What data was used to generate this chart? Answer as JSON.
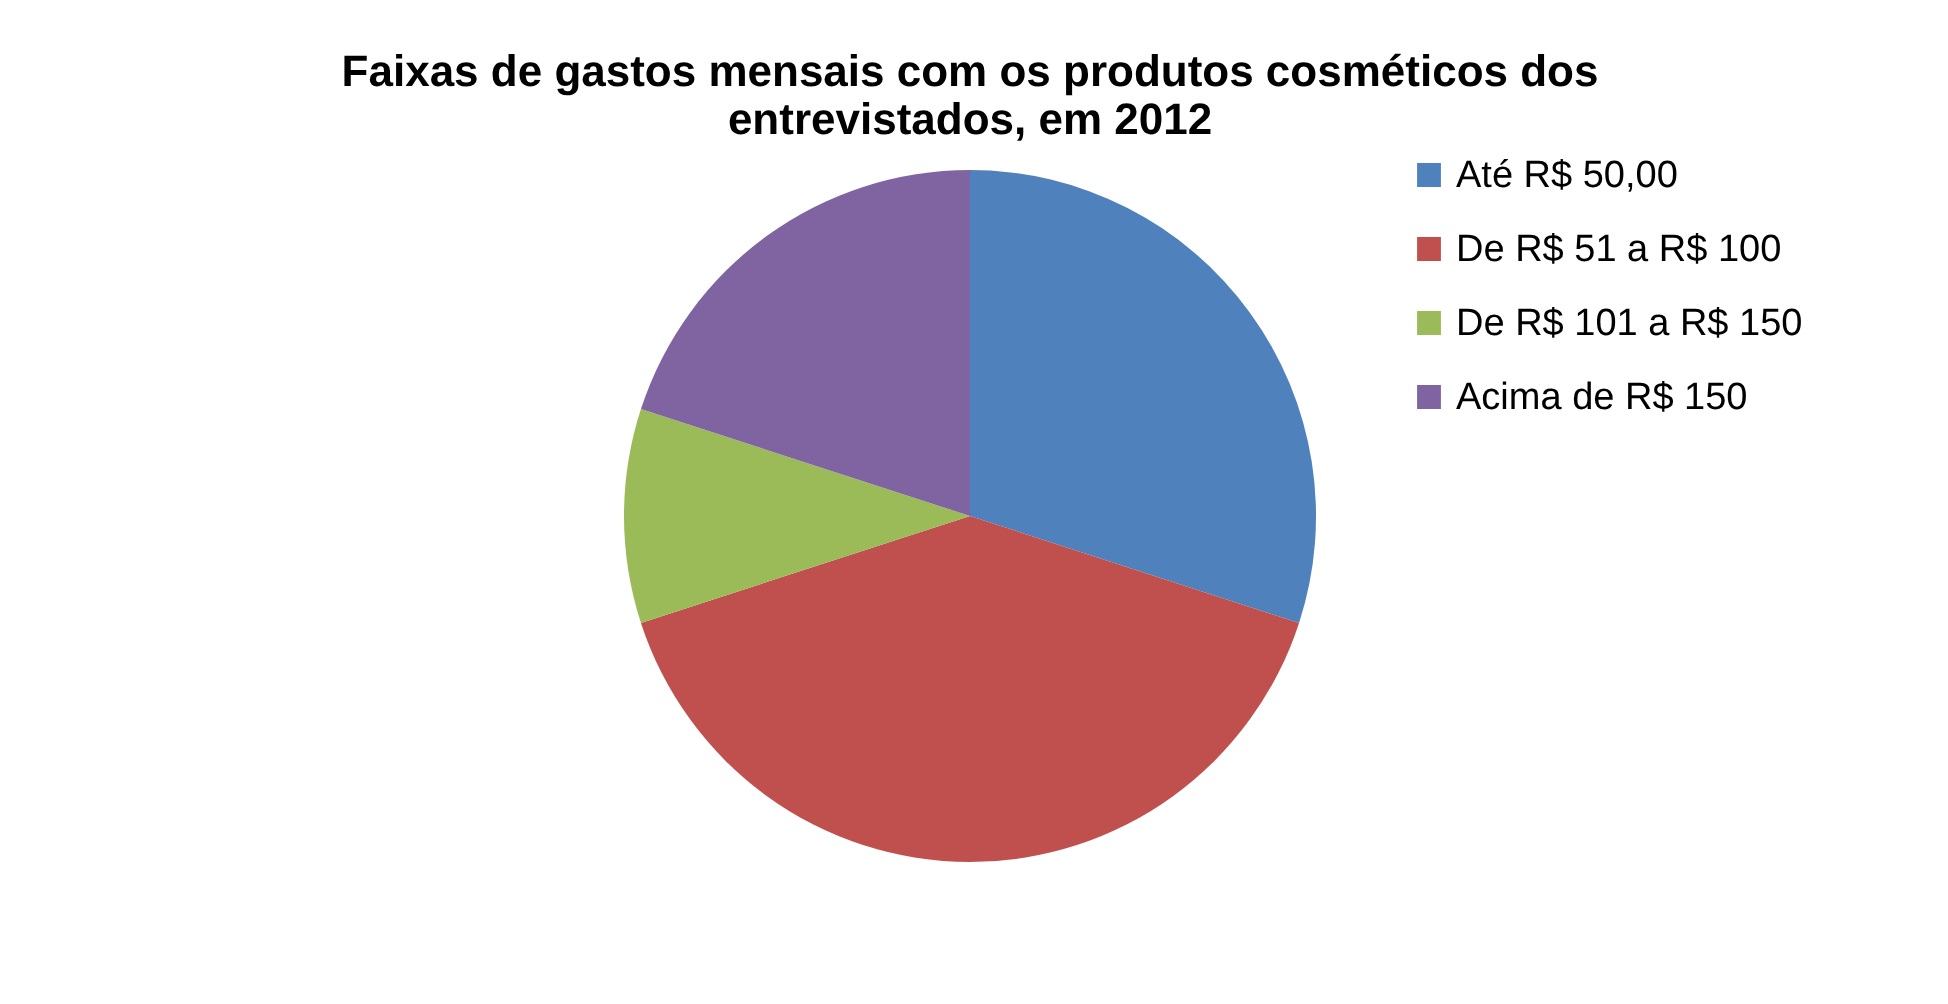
{
  "chart_data": {
    "type": "pie",
    "title": "Faixas de gastos mensais com os produtos cosméticos dos entrevistados, em 2012",
    "categories": [
      "Até R$ 50,00",
      "De R$ 51 a R$ 100",
      "De R$ 101 a R$ 150",
      "Acima de R$ 150"
    ],
    "values": [
      30,
      40,
      10,
      20
    ],
    "colors": [
      "#4f81bd",
      "#c0504d",
      "#9bbb59",
      "#8064a2"
    ],
    "legend": "right"
  }
}
